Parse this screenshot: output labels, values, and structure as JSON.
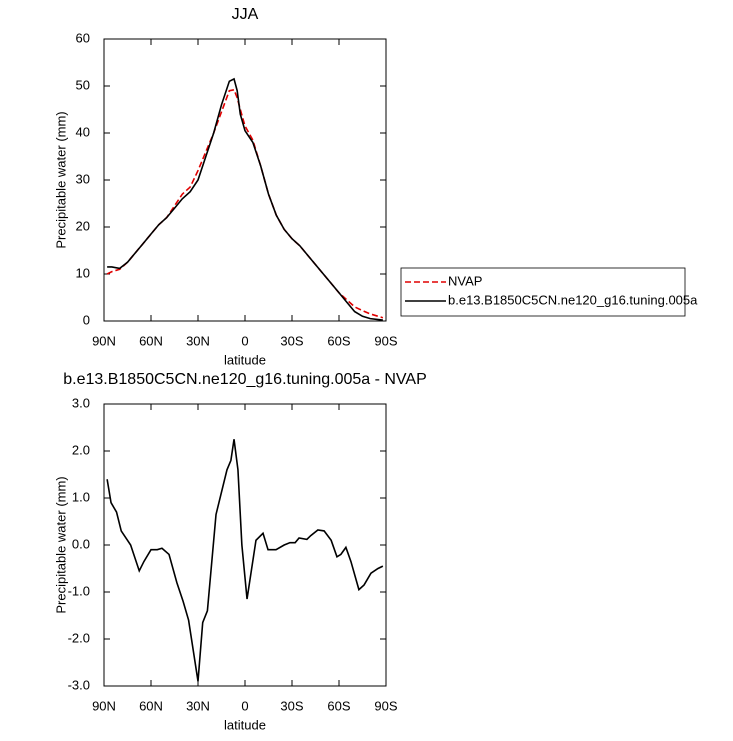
{
  "chart_data": [
    {
      "type": "line",
      "title": "JJA",
      "xlabel": "latitude",
      "ylabel": "Precipitable water (mm)",
      "xlim": [
        90,
        -90
      ],
      "ylim": [
        0,
        60
      ],
      "xticks": [
        {
          "value": 90,
          "label": "90N"
        },
        {
          "value": 60,
          "label": "60N"
        },
        {
          "value": 30,
          "label": "30N"
        },
        0,
        {
          "value": -30,
          "label": "30S"
        },
        {
          "value": -60,
          "label": "60S"
        },
        {
          "value": -90,
          "label": "90S"
        }
      ],
      "yticks": [
        0,
        10,
        20,
        30,
        40,
        50,
        60
      ],
      "legend": "outside-right",
      "x": [
        88,
        85,
        80,
        75,
        70,
        65,
        60,
        55,
        50,
        45,
        40,
        35,
        30,
        25,
        20,
        15,
        10,
        7,
        5,
        3,
        0,
        -5,
        -10,
        -15,
        -20,
        -25,
        -30,
        -35,
        -40,
        -45,
        -50,
        -55,
        -60,
        -65,
        -70,
        -75,
        -80,
        -85,
        -88
      ],
      "series": [
        {
          "name": "NVAP",
          "color": "#e00000",
          "dash": "dashed",
          "values": [
            10,
            10.5,
            11,
            12.5,
            14.5,
            16.5,
            18.5,
            20.5,
            22,
            24.5,
            27,
            28.5,
            32,
            36,
            40,
            44.5,
            49,
            49.2,
            47.5,
            45,
            41.5,
            38.5,
            33,
            27,
            22.5,
            19.5,
            17.5,
            16,
            14,
            12,
            10,
            8,
            6,
            4.5,
            3,
            2.2,
            1.5,
            1,
            0.7
          ]
        },
        {
          "name": "b.e13.B1850C5CN.ne120_g16.tuning.005a",
          "color": "#000000",
          "dash": "solid",
          "values": [
            11.5,
            11.5,
            11.2,
            12.5,
            14.5,
            16.5,
            18.5,
            20.5,
            22,
            24,
            26,
            27.5,
            30,
            35,
            40,
            46,
            51,
            51.5,
            49,
            44,
            40.5,
            38,
            33,
            27,
            22.5,
            19.5,
            17.5,
            16,
            14,
            12,
            10,
            8,
            6,
            4,
            2,
            1,
            0.5,
            0.3,
            0.2
          ]
        }
      ]
    },
    {
      "type": "line",
      "title": "b.e13.B1850C5CN.ne120_g16.tuning.005a - NVAP",
      "xlabel": "latitude",
      "ylabel": "Precipitable water (mm)",
      "xlim": [
        90,
        -90
      ],
      "ylim": [
        -3,
        3
      ],
      "xticks": [
        {
          "value": 90,
          "label": "90N"
        },
        {
          "value": 60,
          "label": "60N"
        },
        {
          "value": 30,
          "label": "30N"
        },
        0,
        {
          "value": -30,
          "label": "30S"
        },
        {
          "value": -60,
          "label": "60S"
        },
        {
          "value": -90,
          "label": "90S"
        }
      ],
      "yticks": [
        {
          "value": -3,
          "label": "-3.0"
        },
        {
          "value": -2,
          "label": "-2.0"
        },
        {
          "value": -1,
          "label": "-1.0"
        },
        {
          "value": 0,
          "label": "0.0"
        },
        {
          "value": 1,
          "label": "1.0"
        },
        {
          "value": 2,
          "label": "2.0"
        },
        {
          "value": 3,
          "label": "3.0"
        }
      ],
      "color": "#000000",
      "x": [
        88,
        85.5,
        82,
        79,
        73,
        67.5,
        64.5,
        60,
        56,
        53,
        48.5,
        43.5,
        39.5,
        36,
        30,
        27,
        24,
        18.5,
        11.5,
        9,
        7,
        4.5,
        2,
        -1.3,
        -3.8,
        -7,
        -11.5,
        -14.7,
        -19.8,
        -25,
        -28.7,
        -32,
        -34.5,
        -39.5,
        -42,
        -46.5,
        -50.5,
        -55,
        -58.7,
        -61.2,
        -64.4,
        -67.6,
        -72.7,
        -76,
        -80.4,
        -84.9,
        -88
      ],
      "values": [
        1.4,
        0.9,
        0.7,
        0.3,
        0,
        -0.55,
        -0.35,
        -0.1,
        -0.1,
        -0.07,
        -0.2,
        -0.8,
        -1.2,
        -1.6,
        -2.9,
        -1.65,
        -1.4,
        0.65,
        1.6,
        1.8,
        2.25,
        1.6,
        0,
        -1.15,
        -0.6,
        0.1,
        0.25,
        -0.1,
        -0.1,
        0,
        0.05,
        0.05,
        0.15,
        0.12,
        0.2,
        0.32,
        0.3,
        0.1,
        -0.25,
        -0.2,
        -0.05,
        -0.35,
        -0.95,
        -0.85,
        -0.6,
        -0.5,
        -0.45
      ]
    }
  ]
}
